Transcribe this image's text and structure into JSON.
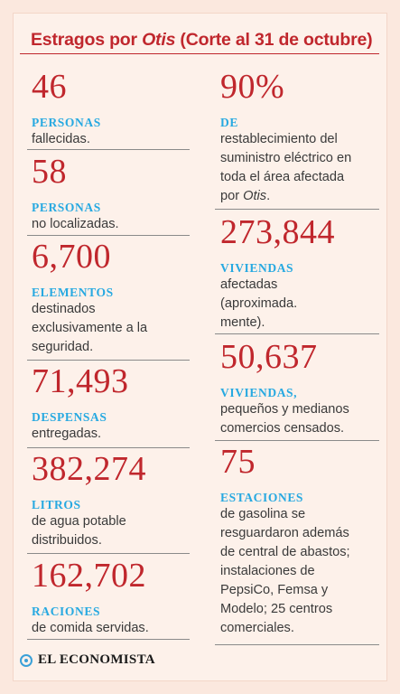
{
  "title": {
    "prefix": "Estragos por ",
    "emphasis": "Otis",
    "suffix": " (Corte al 31 de octubre)"
  },
  "left_stats": [
    {
      "number": "46",
      "label": "PERSONAS",
      "description": "fallecidas."
    },
    {
      "number": "58",
      "label": "PERSONAS",
      "description": "no localizadas."
    },
    {
      "number": "6,700",
      "label": "ELEMENTOS",
      "description": "destinados exclusivamente a la seguridad."
    },
    {
      "number": "71,493",
      "label": "DESPENSAS",
      "description": "entregadas."
    },
    {
      "number": "382,274",
      "label": "LITROS",
      "description": "de agua potable distribuidos."
    },
    {
      "number": "162,702",
      "label": "RACIONES",
      "description": "de comida servidas."
    }
  ],
  "right_stats": [
    {
      "number": "90%",
      "label": "DE",
      "description_pre": "restablecimiento del suministro eléctrico en toda el área afectada por ",
      "description_em": "Otis",
      "description_post": "."
    },
    {
      "number": "273,844",
      "label": "VIVIENDAS",
      "description": "afectadas (aproximada. mente)."
    },
    {
      "number": "50,637",
      "label": "VIVIENDAS,",
      "description": "pequeños y medianos comercios censados."
    },
    {
      "number": "75",
      "label": "ESTACIONES",
      "description": "de gasolina se resguardaron además de central de abastos; instalaciones de PepsiCo, Femsa y Modelo; 25 centros comerciales."
    }
  ],
  "footer": {
    "brand": "EL ECONOMISTA",
    "logo_icon": "el-economista-logo-icon"
  },
  "colors": {
    "accent_red": "#c0272d",
    "label_blue": "#27a9e1",
    "background": "#fdf1ea"
  }
}
